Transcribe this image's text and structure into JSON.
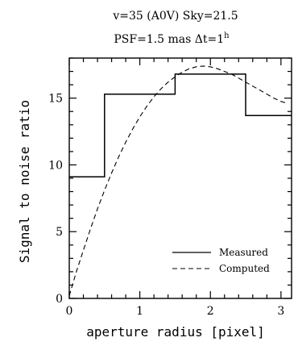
{
  "chart_data": {
    "type": "line",
    "header_line1": "v=35 (A0V)   Sky=21.5",
    "header_line2_prefix": "PSF=1.5 mas   Δt=1",
    "header_line2_sup": "h",
    "xlabel": "aperture radius [pixel]",
    "ylabel": "Signal to noise ratio",
    "xlim": [
      0,
      3.15
    ],
    "ylim": [
      0,
      18
    ],
    "x_ticks": [
      0,
      1,
      2,
      3
    ],
    "y_ticks": [
      0,
      5,
      10,
      15
    ],
    "x_tick_labels": [
      "0",
      "1",
      "2",
      "3"
    ],
    "y_tick_labels": [
      "0",
      "5",
      "10",
      "15"
    ],
    "legend_position": "bottom-right",
    "series": [
      {
        "name": "Measured",
        "style": "solid-step",
        "x": [
          0,
          0.5,
          0.5,
          1.5,
          1.5,
          2.5,
          2.5,
          3.15
        ],
        "y": [
          9.1,
          9.1,
          15.3,
          15.3,
          16.8,
          16.8,
          13.7,
          13.7
        ]
      },
      {
        "name": "Computed",
        "style": "dashed",
        "x": [
          0,
          0.1,
          0.2,
          0.3,
          0.4,
          0.5,
          0.6,
          0.7,
          0.8,
          0.9,
          1.0,
          1.1,
          1.2,
          1.3,
          1.4,
          1.5,
          1.6,
          1.7,
          1.8,
          1.9,
          2.0,
          2.1,
          2.2,
          2.3,
          2.4,
          2.5,
          2.6,
          2.7,
          2.8,
          2.9,
          3.0,
          3.1
        ],
        "y": [
          0.2,
          2.0,
          3.6,
          5.2,
          6.7,
          8.1,
          9.4,
          10.6,
          11.7,
          12.7,
          13.6,
          14.4,
          15.1,
          15.7,
          16.2,
          16.6,
          16.95,
          17.2,
          17.35,
          17.4,
          17.35,
          17.2,
          17.0,
          16.8,
          16.5,
          16.2,
          15.9,
          15.6,
          15.3,
          15.0,
          14.75,
          14.6
        ]
      }
    ]
  }
}
